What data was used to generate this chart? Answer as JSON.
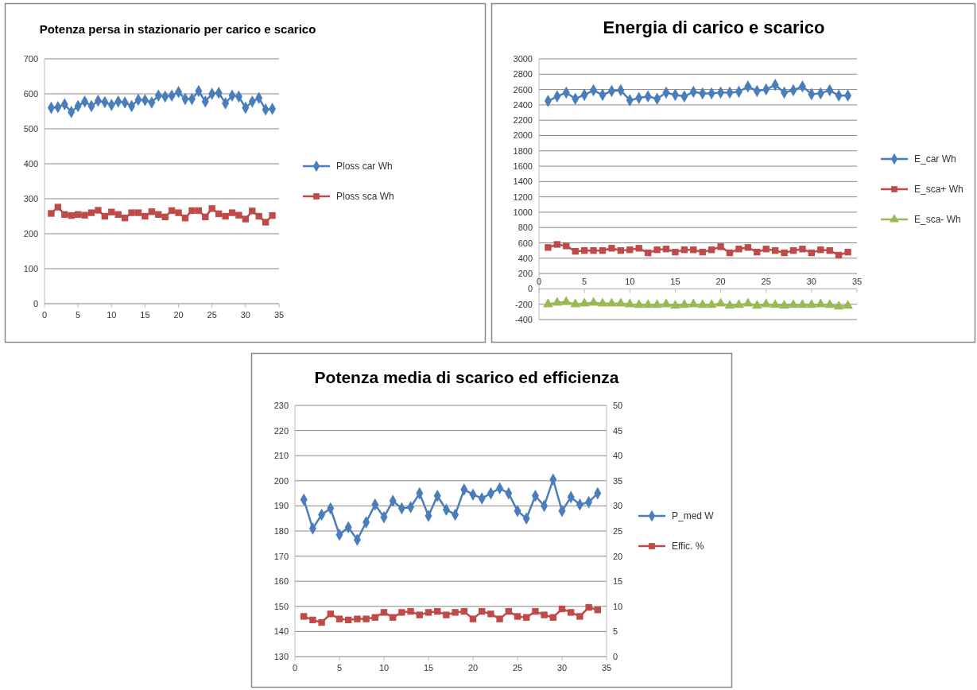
{
  "chart_data": [
    {
      "type": "line",
      "title": "Potenza persa in stazionario per carico e scarico",
      "x": [
        1,
        2,
        3,
        4,
        5,
        6,
        7,
        8,
        9,
        10,
        11,
        12,
        13,
        14,
        15,
        16,
        17,
        18,
        19,
        20,
        21,
        22,
        23,
        24,
        25,
        26,
        27,
        28,
        29,
        30,
        31,
        32,
        33,
        34
      ],
      "xlim": [
        0,
        35
      ],
      "xticks": [
        0,
        5,
        10,
        15,
        20,
        25,
        30,
        35
      ],
      "ylim": [
        0,
        700
      ],
      "yticks": [
        0,
        100,
        200,
        300,
        400,
        500,
        600,
        700
      ],
      "grid": "y",
      "legend": "right",
      "series": [
        {
          "name": "Ploss car Wh",
          "color": "#4a7ebb",
          "marker": "diamond",
          "values": [
            560,
            562,
            570,
            548,
            565,
            578,
            565,
            580,
            576,
            568,
            578,
            575,
            565,
            583,
            582,
            575,
            595,
            592,
            595,
            605,
            585,
            585,
            608,
            578,
            600,
            603,
            573,
            595,
            592,
            560,
            578,
            588,
            555,
            557
          ]
        },
        {
          "name": "Ploss sca Wh",
          "color": "#be4b48",
          "marker": "square",
          "values": [
            258,
            276,
            255,
            252,
            255,
            253,
            260,
            267,
            250,
            262,
            255,
            245,
            260,
            260,
            250,
            263,
            255,
            248,
            266,
            260,
            245,
            266,
            266,
            248,
            272,
            257,
            250,
            260,
            253,
            242,
            265,
            250,
            233,
            252
          ]
        }
      ]
    },
    {
      "type": "line",
      "title": "Energia di carico e scarico",
      "x": [
        1,
        2,
        3,
        4,
        5,
        6,
        7,
        8,
        9,
        10,
        11,
        12,
        13,
        14,
        15,
        16,
        17,
        18,
        19,
        20,
        21,
        22,
        23,
        24,
        25,
        26,
        27,
        28,
        29,
        30,
        31,
        32,
        33,
        34
      ],
      "xlim": [
        0,
        35
      ],
      "xticks": [
        0,
        5,
        10,
        15,
        20,
        25,
        30,
        35
      ],
      "ylim": [
        -400,
        3000
      ],
      "yticks": [
        -400,
        -200,
        0,
        200,
        400,
        600,
        800,
        1000,
        1200,
        1400,
        1600,
        1800,
        2000,
        2200,
        2400,
        2600,
        2800,
        3000
      ],
      "grid": "y",
      "legend": "right",
      "series": [
        {
          "name": "E_car Wh",
          "color": "#4a7ebb",
          "marker": "diamond",
          "values": [
            2450,
            2510,
            2560,
            2480,
            2530,
            2590,
            2530,
            2580,
            2590,
            2460,
            2490,
            2510,
            2480,
            2560,
            2530,
            2510,
            2570,
            2550,
            2550,
            2560,
            2560,
            2570,
            2640,
            2580,
            2600,
            2660,
            2560,
            2590,
            2640,
            2540,
            2550,
            2590,
            2520,
            2520
          ]
        },
        {
          "name": "E_sca+ Wh",
          "color": "#be4b48",
          "marker": "square",
          "values": [
            540,
            580,
            560,
            490,
            500,
            500,
            500,
            530,
            500,
            510,
            530,
            470,
            510,
            520,
            480,
            510,
            510,
            480,
            510,
            550,
            470,
            520,
            540,
            480,
            520,
            500,
            470,
            500,
            520,
            470,
            510,
            500,
            440,
            480
          ]
        },
        {
          "name": "E_sca- Wh",
          "color": "#98b954",
          "marker": "triangle",
          "values": [
            -200,
            -180,
            -170,
            -200,
            -190,
            -180,
            -190,
            -190,
            -190,
            -200,
            -210,
            -210,
            -210,
            -200,
            -220,
            -210,
            -200,
            -210,
            -210,
            -190,
            -220,
            -210,
            -190,
            -220,
            -200,
            -210,
            -220,
            -210,
            -210,
            -210,
            -200,
            -210,
            -230,
            -220
          ]
        }
      ]
    },
    {
      "type": "line",
      "title": "Potenza media di scarico ed efficienza",
      "x": [
        1,
        2,
        3,
        4,
        5,
        6,
        7,
        8,
        9,
        10,
        11,
        12,
        13,
        14,
        15,
        16,
        17,
        18,
        19,
        20,
        21,
        22,
        23,
        24,
        25,
        26,
        27,
        28,
        29,
        30,
        31,
        32,
        33,
        34
      ],
      "xlim": [
        0,
        35
      ],
      "xticks": [
        0,
        5,
        10,
        15,
        20,
        25,
        30,
        35
      ],
      "ylim": [
        130,
        230
      ],
      "yticks": [
        130,
        140,
        150,
        160,
        170,
        180,
        190,
        200,
        210,
        220,
        230
      ],
      "y2lim": [
        0,
        50
      ],
      "y2ticks": [
        0,
        5,
        10,
        15,
        20,
        25,
        30,
        35,
        40,
        45,
        50
      ],
      "grid": "y",
      "legend": "right",
      "series": [
        {
          "name": "P_med W",
          "color": "#4a7ebb",
          "marker": "diamond",
          "values": [
            192.5,
            181,
            186.5,
            189,
            178.5,
            181.5,
            176.5,
            183.5,
            190.5,
            185.5,
            192,
            189,
            189.5,
            195,
            186,
            194,
            188.5,
            186.5,
            196.5,
            194.5,
            193,
            195,
            197,
            195,
            188,
            185,
            194,
            190,
            200.5,
            188,
            193.5,
            190.5,
            191.5,
            195
          ]
        },
        {
          "name": "Effic. %",
          "color": "#be4b48",
          "marker": "square",
          "axis": "y2",
          "values": [
            8,
            7.3,
            6.8,
            8.5,
            7.5,
            7.3,
            7.5,
            7.5,
            7.8,
            8.8,
            7.8,
            8.8,
            9,
            8.3,
            8.8,
            9,
            8.3,
            8.8,
            9,
            7.5,
            9,
            8.5,
            7.5,
            9,
            8,
            7.8,
            9,
            8.3,
            7.8,
            9.5,
            8.8,
            8,
            9.8,
            9.3
          ]
        }
      ]
    }
  ]
}
